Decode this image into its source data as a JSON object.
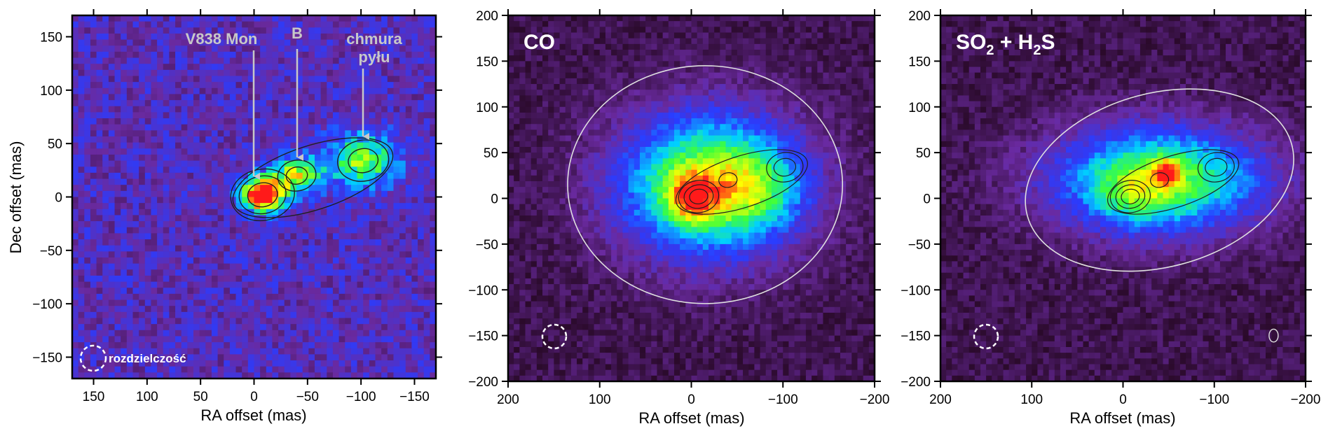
{
  "colors": {
    "background_low": "#2a0a2a",
    "purple": "#6a2aa0",
    "blue": "#2a3cff",
    "cyan": "#00d0ff",
    "green": "#3cff3c",
    "yellow": "#ffff00",
    "red": "#ff1a1a",
    "contour_dark": "#202020",
    "contour_light": "#e0e0e0",
    "annotation": "#c8c8c8"
  },
  "chart_data": [
    {
      "type": "heatmap",
      "title": "",
      "xlabel": "RA offset (mas)",
      "ylabel": "Dec offset (mas)",
      "xlim": [
        170,
        -170
      ],
      "ylim": [
        -170,
        170
      ],
      "xticks": [
        150,
        100,
        50,
        0,
        -50,
        -100,
        -150
      ],
      "xtick_labels": [
        "150",
        "100",
        "50",
        "0",
        "−50",
        "−100",
        "−150"
      ],
      "yticks": [
        150,
        100,
        50,
        0,
        -50,
        -100,
        -150
      ],
      "ytick_labels": [
        "150",
        "100",
        "50",
        "0",
        "−50",
        "−100",
        "−150"
      ],
      "sources": [
        {
          "x": -8,
          "y": 2,
          "sx": 14,
          "sy": 11,
          "amp": 1.0
        },
        {
          "x": -40,
          "y": 20,
          "sx": 16,
          "sy": 12,
          "amp": 0.55
        },
        {
          "x": -102,
          "y": 34,
          "sx": 24,
          "sy": 18,
          "amp": 0.5
        }
      ],
      "annotations": [
        {
          "text": "V838 Mon",
          "x": 0,
          "y": 150,
          "arrow_to": [
            0,
            20
          ]
        },
        {
          "text": "B",
          "x": -40,
          "y": 155,
          "arrow_to": [
            -40,
            40
          ]
        },
        {
          "text": "chmura",
          "x": -100,
          "y": 150,
          "arrow_to": null
        },
        {
          "text": "pyłu",
          "x": -100,
          "y": 128,
          "arrow_to": [
            -100,
            60
          ]
        }
      ],
      "resolution_label": "rozdzielczość",
      "beam": {
        "x": 150,
        "y": -150,
        "r": 12
      }
    },
    {
      "type": "heatmap",
      "title": "CO",
      "xlabel": "RA offset (mas)",
      "ylabel": "",
      "xlim": [
        200,
        -200
      ],
      "ylim": [
        -200,
        200
      ],
      "xticks": [
        200,
        100,
        0,
        -100,
        -200
      ],
      "xtick_labels": [
        "200",
        "100",
        "0",
        "−100",
        "−200"
      ],
      "yticks": [
        200,
        150,
        100,
        50,
        0,
        -50,
        -100,
        -150,
        -200
      ],
      "ytick_labels": [
        "200",
        "150",
        "100",
        "50",
        "0",
        "−50",
        "−100",
        "−150",
        "−200"
      ],
      "sources": [
        {
          "x": -20,
          "y": 15,
          "sx": 70,
          "sy": 55,
          "amp": 0.75
        },
        {
          "x": 0,
          "y": 0,
          "sx": 18,
          "sy": 18,
          "amp": 0.35
        },
        {
          "x": -75,
          "y": 10,
          "sx": 35,
          "sy": 30,
          "amp": 0.18
        }
      ],
      "beam": {
        "x": 150,
        "y": -150,
        "r": 12
      }
    },
    {
      "type": "heatmap",
      "title": "SO2 + H2S",
      "xlabel": "RA offset (mas)",
      "ylabel": "",
      "xlim": [
        200,
        -200
      ],
      "ylim": [
        -200,
        200
      ],
      "xticks": [
        200,
        100,
        0,
        -100,
        -200
      ],
      "xtick_labels": [
        "200",
        "100",
        "0",
        "−100",
        "−200"
      ],
      "yticks": [
        200,
        150,
        100,
        50,
        0,
        -50,
        -100,
        -150,
        -200
      ],
      "ytick_labels": [
        "200",
        "150",
        "100",
        "50",
        "0",
        "−50",
        "−100",
        "−150",
        "−200"
      ],
      "sources": [
        {
          "x": -40,
          "y": 20,
          "sx": 80,
          "sy": 40,
          "amp": 0.7
        },
        {
          "x": -48,
          "y": 30,
          "sx": 9,
          "sy": 9,
          "amp": 0.4
        },
        {
          "x": -10,
          "y": 0,
          "sx": 25,
          "sy": 20,
          "amp": 0.15
        }
      ],
      "beam": {
        "x": 150,
        "y": -150,
        "r": 12
      }
    }
  ]
}
